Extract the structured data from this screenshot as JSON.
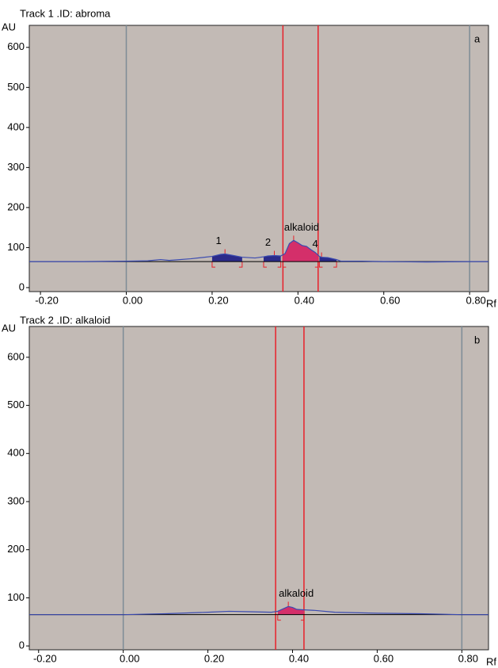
{
  "chart_data": [
    {
      "type": "line",
      "title": "Track 1 .ID: abroma",
      "panel_label": "a",
      "ylabel": "AU",
      "xlabel": "Rf",
      "xlim": [
        -0.226,
        0.844
      ],
      "ylim": [
        -10,
        655
      ],
      "xticks": [
        {
          "value": -0.2,
          "label": "-0.20"
        },
        {
          "value": 0,
          "label": "0.00"
        },
        {
          "value": 0.2,
          "label": "0.20"
        },
        {
          "value": 0.4,
          "label": "0.40"
        },
        {
          "value": 0.6,
          "label": "0.60"
        },
        {
          "value": 0.8,
          "label": "0.80"
        }
      ],
      "yticks": [
        0,
        100,
        200,
        300,
        400,
        500,
        600
      ],
      "background": "#c2bab5",
      "baseline": 65,
      "vlines": [
        {
          "x": 0,
          "color": "#7d8c96"
        },
        {
          "x": 0.8,
          "color": "#7d8c96"
        },
        {
          "x": 0.365,
          "color": "#e8202a"
        },
        {
          "x": 0.447,
          "color": "#e8202a"
        }
      ],
      "series": [
        {
          "color": "#3b4bb0",
          "x": [
            -0.226,
            -0.1,
            0,
            0.05,
            0.08,
            0.1,
            0.15,
            0.2,
            0.22,
            0.23,
            0.25,
            0.27,
            0.3,
            0.32,
            0.33,
            0.345,
            0.36,
            0.37,
            0.38,
            0.39,
            0.4,
            0.41,
            0.42,
            0.43,
            0.44,
            0.45,
            0.455,
            0.47,
            0.49,
            0.5,
            0.55,
            0.6,
            0.7,
            0.8,
            0.844
          ],
          "values": [
            65,
            65,
            66,
            67,
            70,
            68,
            72,
            78,
            83,
            84,
            80,
            76,
            74,
            77,
            79,
            80,
            79,
            85,
            110,
            118,
            112,
            105,
            103,
            95,
            88,
            78,
            76,
            75,
            70,
            66,
            66,
            65,
            64,
            65,
            65
          ]
        }
      ],
      "peaks": [
        {
          "label": "1",
          "start": 0.2,
          "end": 0.27,
          "apex": 0.23,
          "color": "#2b2b8a"
        },
        {
          "label": "2",
          "start": 0.32,
          "end": 0.36,
          "apex": 0.345,
          "color": "#2b2b8a"
        },
        {
          "label": "alkaloid",
          "start": 0.365,
          "end": 0.447,
          "apex": 0.39,
          "color": "#d42f6a"
        },
        {
          "label": "4",
          "start": 0.45,
          "end": 0.49,
          "apex": 0.455,
          "color": "#2b2b8a"
        }
      ]
    },
    {
      "type": "line",
      "title": "Track 2 .ID: alkaloid",
      "panel_label": "b",
      "ylabel": "AU",
      "xlabel": "Rf",
      "xlim": [
        -0.222,
        0.863
      ],
      "ylim": [
        -8,
        664
      ],
      "xticks": [
        {
          "value": -0.2,
          "label": "-0.20"
        },
        {
          "value": 0,
          "label": "0.00"
        },
        {
          "value": 0.2,
          "label": "0.20"
        },
        {
          "value": 0.4,
          "label": "0.40"
        },
        {
          "value": 0.6,
          "label": "0.60"
        },
        {
          "value": 0.8,
          "label": "0.80"
        }
      ],
      "yticks": [
        0,
        100,
        200,
        300,
        400,
        500,
        600
      ],
      "background": "#c2bab5",
      "baseline": 65,
      "vlines": [
        {
          "x": 0,
          "color": "#7d8c96"
        },
        {
          "x": 0.8,
          "color": "#7d8c96"
        },
        {
          "x": 0.36,
          "color": "#e8202a"
        },
        {
          "x": 0.427,
          "color": "#e8202a"
        }
      ],
      "series": [
        {
          "color": "#3b4bb0",
          "x": [
            -0.222,
            0,
            0.1,
            0.2,
            0.25,
            0.3,
            0.35,
            0.365,
            0.38,
            0.39,
            0.4,
            0.41,
            0.427,
            0.45,
            0.5,
            0.6,
            0.7,
            0.8,
            0.863
          ],
          "values": [
            65,
            65,
            67,
            70,
            72,
            71,
            70,
            72,
            78,
            82,
            80,
            76,
            75,
            74,
            70,
            68,
            67,
            65,
            65
          ]
        }
      ],
      "peaks": [
        {
          "label": "alkaloid",
          "start": 0.365,
          "end": 0.427,
          "apex": 0.39,
          "color": "#d42f6a"
        }
      ]
    }
  ]
}
